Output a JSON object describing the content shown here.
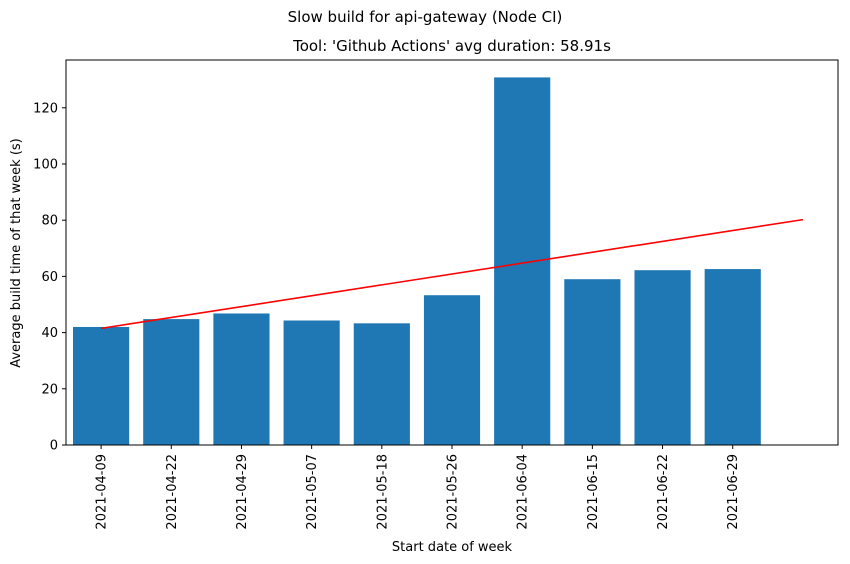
{
  "figure": {
    "suptitle": "Slow build for api-gateway (Node CI)"
  },
  "chart_data": {
    "type": "bar",
    "title": "Tool: 'Github Actions' avg duration: 58.91s",
    "xlabel": "Start date of week",
    "ylabel": "Average build time of that week (s)",
    "categories": [
      "2021-04-09",
      "2021-04-22",
      "2021-04-29",
      "2021-05-07",
      "2021-05-18",
      "2021-05-26",
      "2021-06-04",
      "2021-06-15",
      "2021-06-22",
      "2021-06-29"
    ],
    "values": [
      42.0,
      44.8,
      46.8,
      44.3,
      43.3,
      53.3,
      130.8,
      59.0,
      62.2,
      62.6
    ],
    "ylim": [
      0,
      137
    ],
    "yticks": [
      0,
      20,
      40,
      60,
      80,
      100,
      120
    ],
    "trend_line": {
      "y_start": 41.5,
      "y_end": 80.2
    },
    "grid": false,
    "bar_color": "#1f77b4",
    "trend_color": "#ff0000"
  }
}
